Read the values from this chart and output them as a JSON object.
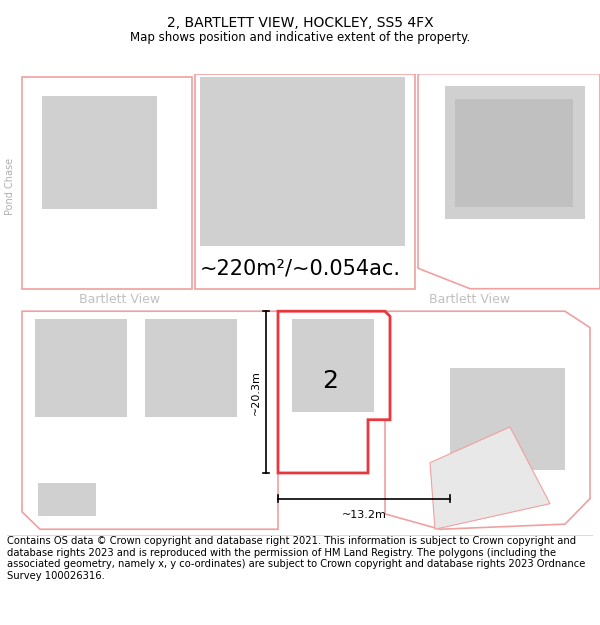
{
  "title": "2, BARTLETT VIEW, HOCKLEY, SS5 4FX",
  "subtitle": "Map shows position and indicative extent of the property.",
  "area_text": "~220m²/~0.054ac.",
  "label_2": "2",
  "dim_height": "~20.3m",
  "dim_width": "~13.2m",
  "street_label_left": "Bartlett View",
  "street_label_right": "Bartlett View",
  "road_label_vert": "Pond Chase",
  "footer": "Contains OS data © Crown copyright and database right 2021. This information is subject to Crown copyright and database rights 2023 and is reproduced with the permission of HM Land Registry. The polygons (including the associated geometry, namely x, y co-ordinates) are subject to Crown copyright and database rights 2023 Ordnance Survey 100026316.",
  "bg_color": "#ffffff",
  "plot_outline_red": "#e8383d",
  "plot_outline_light": "#f0a0a0",
  "building_fill": "#d0d0d0",
  "title_fontsize": 10,
  "subtitle_fontsize": 8.5,
  "footer_fontsize": 7.2,
  "area_fontsize": 15,
  "street_fontsize": 9,
  "road_fontsize": 7,
  "label2_fontsize": 18,
  "dim_fontsize": 8
}
